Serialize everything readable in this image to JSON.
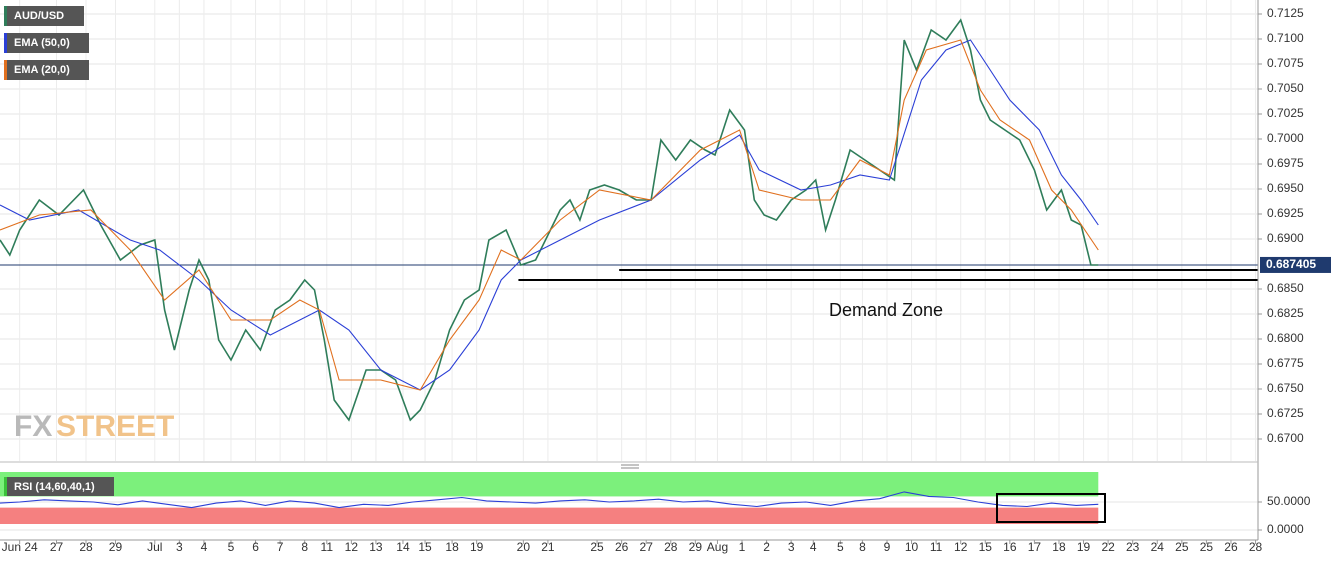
{
  "chart_data": [
    {
      "type": "line",
      "grid": true,
      "watermark": [
        "FX",
        "STREET"
      ],
      "annotation": "Demand Zone",
      "last_price": 0.687405,
      "xlim": [
        -0.8,
        50.4
      ],
      "ylim": [
        0.6678,
        0.7139
      ],
      "yticks": [
        0.7125,
        {
          "value": 0.71,
          "label": "0.7100"
        },
        0.7075,
        {
          "value": 0.705,
          "label": "0.7050"
        },
        0.7025,
        {
          "value": 0.7,
          "label": "0.7000"
        },
        0.6975,
        {
          "value": 0.695,
          "label": "0.6950"
        },
        0.6925,
        {
          "value": 0.69,
          "label": "0.6900"
        },
        {
          "value": 0.685,
          "label": "0.6850"
        },
        0.6825,
        {
          "value": 0.68,
          "label": "0.6800"
        },
        0.6775,
        {
          "value": 0.675,
          "label": "0.6750"
        },
        0.6725,
        {
          "value": 0.67,
          "label": "0.6700"
        }
      ],
      "support_lines": [
        {
          "y": 0.6869,
          "x_start": 24.4
        },
        {
          "y": 0.6859,
          "x_start": 20.3
        }
      ],
      "series": [
        {
          "name": "AUD/USD",
          "color": "#2f7d5a",
          "x": [
            -0.8,
            -0.4,
            0,
            0.8,
            1.6,
            2.6,
            3.3,
            4.1,
            4.9,
            5.5,
            5.9,
            6.3,
            6.9,
            7.3,
            7.7,
            8.1,
            8.6,
            9.2,
            9.8,
            10.4,
            11.0,
            11.6,
            12.0,
            12.4,
            12.8,
            13.4,
            14.1,
            14.7,
            15.3,
            15.9,
            16.3,
            16.9,
            17.5,
            18.1,
            18.7,
            19.1,
            19.8,
            20.4,
            21.0,
            21.4,
            22.0,
            22.4,
            22.8,
            23.2,
            23.8,
            24.4,
            25.1,
            25.7,
            26.1,
            26.7,
            27.3,
            27.9,
            28.3,
            28.9,
            29.5,
            29.9,
            30.3,
            30.8,
            31.4,
            32.0,
            32.4,
            32.8,
            33.2,
            33.8,
            34.4,
            35.0,
            35.6,
            36.0,
            36.5,
            37.1,
            37.7,
            38.3,
            38.7,
            39.1,
            39.5,
            40.1,
            40.7,
            41.3,
            41.8,
            42.4,
            42.8,
            43.2,
            43.6,
            43.9
          ],
          "values": [
            0.6899,
            0.6884,
            0.6909,
            0.6939,
            0.6924,
            0.6949,
            0.6914,
            0.6879,
            0.6894,
            0.6899,
            0.6829,
            0.6789,
            0.6849,
            0.6879,
            0.6859,
            0.6799,
            0.6779,
            0.6809,
            0.6789,
            0.6829,
            0.6839,
            0.6859,
            0.6849,
            0.6799,
            0.6739,
            0.6719,
            0.6769,
            0.6769,
            0.6759,
            0.6719,
            0.6729,
            0.6759,
            0.6809,
            0.6839,
            0.6849,
            0.6899,
            0.6909,
            0.6874,
            0.6879,
            0.6899,
            0.6929,
            0.6939,
            0.6919,
            0.6949,
            0.6954,
            0.6949,
            0.6939,
            0.6939,
            0.6999,
            0.6979,
            0.6999,
            0.6989,
            0.6984,
            0.7029,
            0.7009,
            0.6939,
            0.6924,
            0.6919,
            0.6939,
            0.6949,
            0.6959,
            0.6909,
            0.6939,
            0.6989,
            0.6979,
            0.6969,
            0.6959,
            0.7099,
            0.7069,
            0.7109,
            0.7099,
            0.7119,
            0.7089,
            0.7039,
            0.7019,
            0.7009,
            0.6999,
            0.6969,
            0.6929,
            0.6949,
            0.6919,
            0.6914,
            0.6874,
            0.6874
          ]
        },
        {
          "name": "EMA (50,0)",
          "color": "#2b3fd6",
          "x": [
            -0.8,
            0.4,
            2.4,
            4.5,
            5.7,
            7.3,
            8.6,
            10.2,
            12.2,
            13.4,
            14.7,
            16.3,
            17.5,
            18.7,
            19.6,
            20.4,
            22.0,
            23.6,
            25.7,
            27.7,
            29.3,
            30.1,
            31.8,
            33.0,
            34.2,
            35.4,
            36.7,
            37.7,
            38.7,
            39.5,
            40.3,
            41.5,
            42.4,
            43.2,
            43.9
          ],
          "values": [
            0.6934,
            0.6919,
            0.6929,
            0.6899,
            0.6889,
            0.6859,
            0.6829,
            0.6804,
            0.6829,
            0.6809,
            0.6769,
            0.6749,
            0.6769,
            0.6809,
            0.6859,
            0.6879,
            0.6899,
            0.6919,
            0.6939,
            0.6979,
            0.7004,
            0.6969,
            0.6949,
            0.6954,
            0.6964,
            0.6959,
            0.7059,
            0.7089,
            0.7099,
            0.7069,
            0.7039,
            0.7009,
            0.6964,
            0.6939,
            0.6914
          ]
        },
        {
          "name": "EMA (20,0)",
          "color": "#e0701f",
          "x": [
            -0.8,
            0.8,
            2.9,
            4.5,
            5.9,
            7.3,
            8.6,
            10.2,
            11.4,
            12.2,
            13.0,
            14.7,
            16.3,
            17.5,
            18.7,
            19.6,
            20.4,
            22.0,
            23.6,
            25.7,
            27.7,
            29.3,
            30.1,
            31.8,
            33.0,
            34.2,
            35.4,
            36.0,
            36.9,
            38.3,
            39.1,
            39.9,
            41.1,
            42.0,
            42.8,
            43.9
          ],
          "values": [
            0.6909,
            0.6924,
            0.6929,
            0.6889,
            0.6839,
            0.6869,
            0.6819,
            0.6819,
            0.6839,
            0.6829,
            0.6759,
            0.6759,
            0.6749,
            0.6799,
            0.6839,
            0.6889,
            0.6879,
            0.6919,
            0.6949,
            0.6939,
            0.6989,
            0.7009,
            0.6949,
            0.6939,
            0.6939,
            0.6979,
            0.6964,
            0.7039,
            0.7089,
            0.7099,
            0.7049,
            0.7019,
            0.6999,
            0.6949,
            0.6929,
            0.6889
          ]
        }
      ]
    },
    {
      "type": "line",
      "grid": true,
      "xlim": [
        -0.8,
        50.4
      ],
      "ylim": [
        -10.7,
        103.6
      ],
      "levels": [
        60,
        40
      ],
      "yticks": [
        {
          "value": 50,
          "label": "50.0000"
        },
        {
          "value": 0,
          "label": "0.0000"
        }
      ],
      "xticks": [
        {
          "value": 0,
          "label": "Jun 24"
        },
        {
          "value": 1.5,
          "label": "27"
        },
        {
          "value": 2.7,
          "label": "28"
        },
        {
          "value": 3.9,
          "label": "29"
        },
        {
          "value": 5.5,
          "label": "Jul"
        },
        {
          "value": 6.5,
          "label": "3"
        },
        {
          "value": 7.5,
          "label": "4"
        },
        {
          "value": 8.6,
          "label": "5"
        },
        {
          "value": 9.6,
          "label": "6"
        },
        {
          "value": 10.6,
          "label": "7"
        },
        {
          "value": 11.6,
          "label": "8"
        },
        {
          "value": 12.5,
          "label": "11"
        },
        {
          "value": 13.5,
          "label": "12"
        },
        {
          "value": 14.5,
          "label": "13"
        },
        {
          "value": 15.6,
          "label": "14"
        },
        {
          "value": 16.5,
          "label": "15"
        },
        {
          "value": 17.6,
          "label": "18"
        },
        {
          "value": 18.6,
          "label": "19"
        },
        {
          "value": 20.5,
          "label": "20"
        },
        {
          "value": 21.5,
          "label": "21"
        },
        {
          "value": 23.5,
          "label": "25"
        },
        {
          "value": 24.5,
          "label": "26"
        },
        {
          "value": 25.5,
          "label": "27"
        },
        {
          "value": 26.5,
          "label": "28"
        },
        {
          "value": 27.5,
          "label": "29"
        },
        {
          "value": 28.4,
          "label": "Aug"
        },
        {
          "value": 29.4,
          "label": "1"
        },
        {
          "value": 30.4,
          "label": "2"
        },
        {
          "value": 31.4,
          "label": "3"
        },
        {
          "value": 32.3,
          "label": "4"
        },
        {
          "value": 33.4,
          "label": "5"
        },
        {
          "value": 34.3,
          "label": "8"
        },
        {
          "value": 35.3,
          "label": "9"
        },
        {
          "value": 36.3,
          "label": "10"
        },
        {
          "value": 37.3,
          "label": "11"
        },
        {
          "value": 38.3,
          "label": "12"
        },
        {
          "value": 39.3,
          "label": "15"
        },
        {
          "value": 40.3,
          "label": "16"
        },
        {
          "value": 41.3,
          "label": "17"
        },
        {
          "value": 42.3,
          "label": "18"
        },
        {
          "value": 43.3,
          "label": "19"
        },
        {
          "value": 44.3,
          "label": "22"
        },
        {
          "value": 45.3,
          "label": "23"
        },
        {
          "value": 46.3,
          "label": "24"
        },
        {
          "value": 47.3,
          "label": "25"
        },
        {
          "value": 48.3,
          "label": "25"
        },
        {
          "value": 49.3,
          "label": "26"
        },
        {
          "value": 50.3,
          "label": "28"
        }
      ],
      "series": [
        {
          "name": "RSI (14,60,40,1)",
          "color": "#2b3fd6",
          "x": [
            -0.8,
            0,
            1,
            2,
            3,
            4,
            5,
            6,
            7,
            8,
            9,
            10,
            11,
            12,
            13,
            14,
            15,
            16,
            17,
            18,
            19,
            20,
            21,
            22,
            23,
            24,
            25,
            26,
            27,
            28,
            29,
            30,
            31,
            32,
            33,
            34,
            35,
            36,
            37,
            38,
            39,
            40,
            41,
            42,
            43,
            43.9
          ],
          "values": [
            48,
            50,
            54,
            52,
            50,
            45,
            52,
            46,
            40,
            48,
            52,
            44,
            52,
            48,
            40,
            46,
            44,
            50,
            54,
            58,
            52,
            50,
            48,
            52,
            54,
            50,
            52,
            55,
            50,
            52,
            46,
            42,
            48,
            50,
            44,
            52,
            56,
            68,
            60,
            58,
            50,
            44,
            42,
            48,
            44,
            46
          ]
        }
      ]
    }
  ]
}
